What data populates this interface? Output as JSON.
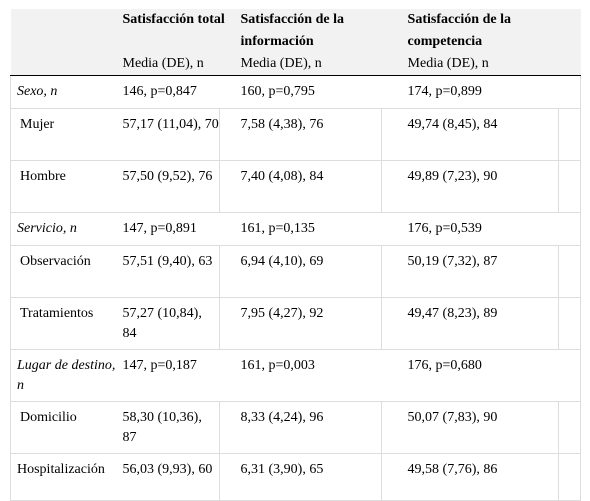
{
  "header": {
    "col_total": "Satisfacción total",
    "col_info": "Satisfacción de la información",
    "col_comp": "Satisfacción de la competencia",
    "sub_total": "Media (DE), n",
    "sub_info": "Media (DE), n",
    "sub_comp": "Media (DE), n"
  },
  "rows": [
    {
      "label": "Sexo, n",
      "total": "146, p=0,847",
      "info": "160, p=0,795",
      "comp": "174, p=0,899"
    },
    {
      "label": "Mujer",
      "total": "57,17 (11,04), 70",
      "info": "7,58 (4,38), 76",
      "comp": "49,74 (8,45), 84"
    },
    {
      "label": "Hombre",
      "total": "57,50 (9,52), 76",
      "info": "7,40 (4,08), 84",
      "comp": "49,89 (7,23), 90"
    },
    {
      "label": "Servicio, n",
      "total": "147, p=0,891",
      "info": "161, p=0,135",
      "comp": "176, p=0,539"
    },
    {
      "label": "Observación",
      "total": "57,51 (9,40), 63",
      "info": "6,94 (4,10), 69",
      "comp": "50,19 (7,32), 87"
    },
    {
      "label": "Tratamientos",
      "total": "57,27 (10,84), 84",
      "info": "7,95 (4,27), 92",
      "comp": "49,47 (8,23), 89"
    },
    {
      "label": "Lugar de destino, n",
      "total": "147, p=0,187",
      "info": "161, p=0,003",
      "comp": "176, p=0,680"
    },
    {
      "label": "Domicilio",
      "total": "58,30 (10,36), 87",
      "info": "8,33 (4,24), 96",
      "comp": "50,07 (7,83), 90"
    },
    {
      "label": "Hospitalización",
      "total": "56,03 (9,93), 60",
      "info": "6,31 (3,90), 65",
      "comp": "49,58 (7,76), 86"
    }
  ]
}
